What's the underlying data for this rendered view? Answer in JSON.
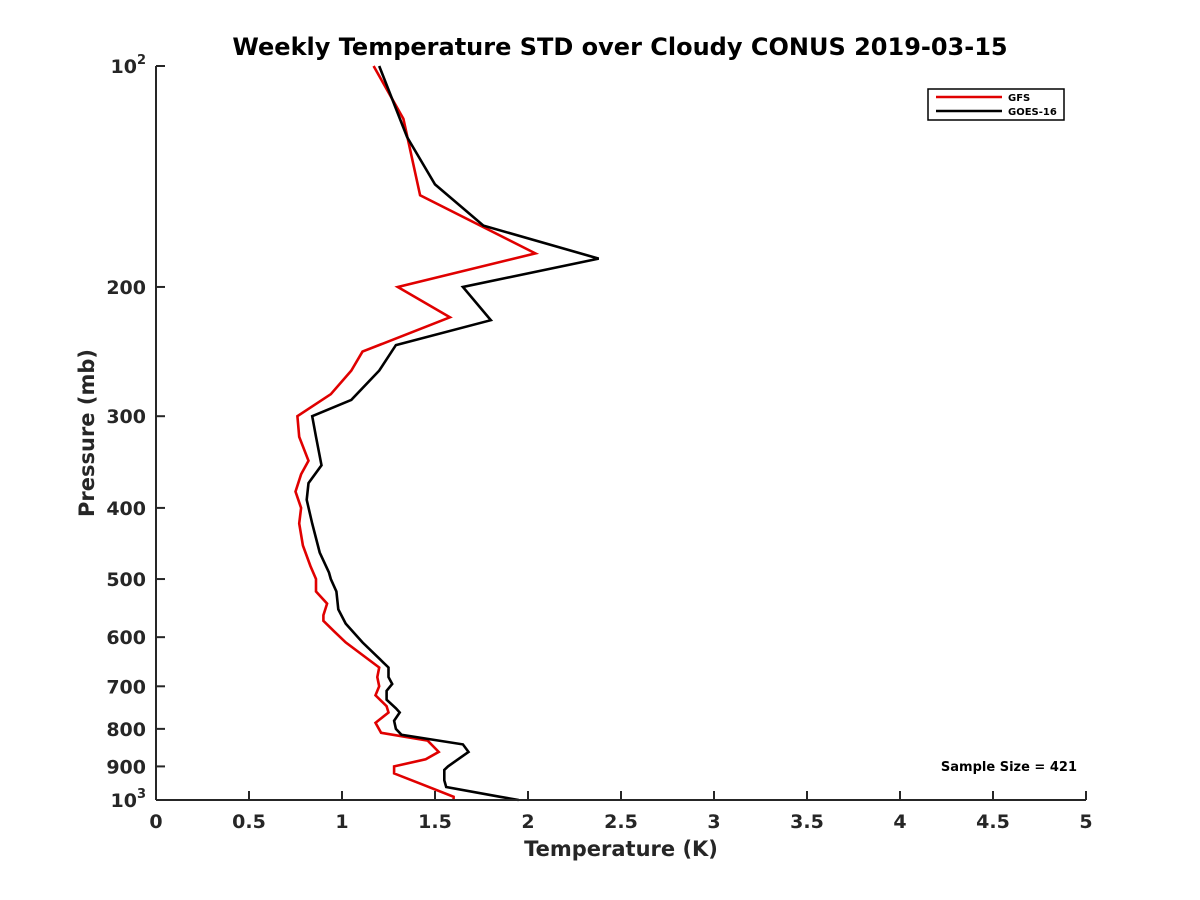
{
  "chart_data": {
    "type": "line",
    "title": "Weekly Temperature STD over Cloudy CONUS 2019-03-15",
    "xlabel": "Temperature (K)",
    "ylabel": "Pressure (mb)",
    "xlim": [
      0,
      5
    ],
    "ylim": [
      100,
      1000
    ],
    "y_scale": "log",
    "y_direction": "reversed",
    "grid": false,
    "legend_position": "top-right",
    "x_ticks": [
      0,
      0.5,
      1,
      1.5,
      2,
      2.5,
      3,
      3.5,
      4,
      4.5,
      5
    ],
    "x_tick_labels": [
      "0",
      "0.5",
      "1",
      "1.5",
      "2",
      "2.5",
      "3",
      "3.5",
      "4",
      "4.5",
      "5"
    ],
    "y_ticks": [
      {
        "value": 100,
        "label": "10",
        "exponent": "2"
      },
      {
        "value": 200,
        "label": "200",
        "exponent": ""
      },
      {
        "value": 300,
        "label": "300",
        "exponent": ""
      },
      {
        "value": 400,
        "label": "400",
        "exponent": ""
      },
      {
        "value": 500,
        "label": "500",
        "exponent": ""
      },
      {
        "value": 600,
        "label": "600",
        "exponent": ""
      },
      {
        "value": 700,
        "label": "700",
        "exponent": ""
      },
      {
        "value": 800,
        "label": "800",
        "exponent": ""
      },
      {
        "value": 900,
        "label": "900",
        "exponent": ""
      },
      {
        "value": 1000,
        "label": "10",
        "exponent": "3"
      }
    ],
    "series": [
      {
        "name": "GFS",
        "color": "#e00000",
        "points": [
          [
            1.17,
            100
          ],
          [
            1.33,
            118
          ],
          [
            1.42,
            150
          ],
          [
            2.04,
            180
          ],
          [
            1.3,
            200
          ],
          [
            1.58,
            220
          ],
          [
            1.11,
            245
          ],
          [
            1.05,
            260
          ],
          [
            0.94,
            280
          ],
          [
            0.76,
            300
          ],
          [
            0.77,
            320
          ],
          [
            0.82,
            345
          ],
          [
            0.78,
            360
          ],
          [
            0.75,
            380
          ],
          [
            0.78,
            400
          ],
          [
            0.77,
            420
          ],
          [
            0.79,
            450
          ],
          [
            0.83,
            480
          ],
          [
            0.86,
            500
          ],
          [
            0.86,
            520
          ],
          [
            0.92,
            540
          ],
          [
            0.9,
            560
          ],
          [
            0.9,
            570
          ],
          [
            0.96,
            590
          ],
          [
            1.02,
            610
          ],
          [
            1.2,
            660
          ],
          [
            1.19,
            680
          ],
          [
            1.2,
            700
          ],
          [
            1.18,
            720
          ],
          [
            1.24,
            745
          ],
          [
            1.25,
            760
          ],
          [
            1.18,
            785
          ],
          [
            1.21,
            810
          ],
          [
            1.46,
            830
          ],
          [
            1.52,
            860
          ],
          [
            1.45,
            880
          ],
          [
            1.28,
            900
          ],
          [
            1.28,
            920
          ],
          [
            1.42,
            950
          ],
          [
            1.6,
            990
          ],
          [
            1.6,
            1000
          ]
        ]
      },
      {
        "name": "GOES-16",
        "color": "#000000",
        "points": [
          [
            1.2,
            100
          ],
          [
            1.35,
            125
          ],
          [
            1.5,
            145
          ],
          [
            1.76,
            165
          ],
          [
            2.38,
            183
          ],
          [
            1.65,
            200
          ],
          [
            1.8,
            222
          ],
          [
            1.29,
            240
          ],
          [
            1.2,
            260
          ],
          [
            1.05,
            285
          ],
          [
            0.84,
            300
          ],
          [
            0.86,
            320
          ],
          [
            0.89,
            350
          ],
          [
            0.82,
            370
          ],
          [
            0.81,
            390
          ],
          [
            0.84,
            420
          ],
          [
            0.88,
            460
          ],
          [
            0.93,
            490
          ],
          [
            0.94,
            500
          ],
          [
            0.97,
            520
          ],
          [
            0.98,
            550
          ],
          [
            1.02,
            575
          ],
          [
            1.11,
            610
          ],
          [
            1.25,
            660
          ],
          [
            1.25,
            680
          ],
          [
            1.27,
            695
          ],
          [
            1.24,
            710
          ],
          [
            1.24,
            730
          ],
          [
            1.29,
            750
          ],
          [
            1.31,
            760
          ],
          [
            1.28,
            780
          ],
          [
            1.29,
            800
          ],
          [
            1.32,
            815
          ],
          [
            1.65,
            840
          ],
          [
            1.68,
            860
          ],
          [
            1.57,
            900
          ],
          [
            1.55,
            910
          ],
          [
            1.55,
            940
          ],
          [
            1.56,
            960
          ],
          [
            1.85,
            990
          ],
          [
            1.95,
            1000
          ]
        ]
      }
    ],
    "annotations": [
      {
        "text": "Sample Size = 421",
        "position": "bottom-right"
      }
    ]
  }
}
